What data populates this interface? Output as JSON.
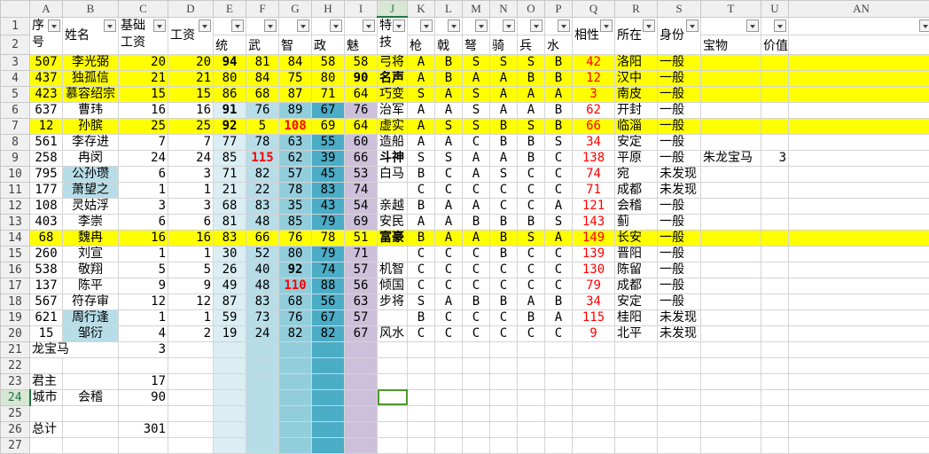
{
  "sheet": {
    "column_letters": [
      "A",
      "B",
      "C",
      "D",
      "E",
      "F",
      "G",
      "H",
      "I",
      "J",
      "K",
      "L",
      "M",
      "N",
      "O",
      "P",
      "Q",
      "R",
      "S",
      "T",
      "U",
      "AN"
    ],
    "active_cell": "J24",
    "header_labels": {
      "A": "序号",
      "B": "姓名",
      "C": "基础工资",
      "D": "工资",
      "E": "统",
      "F": "武",
      "G": "智",
      "H": "政",
      "I": "魅",
      "J": "特技",
      "K": "枪",
      "L": "戟",
      "M": "弩",
      "N": "骑",
      "O": "兵",
      "P": "水",
      "Q": "相性",
      "R": "所在",
      "S": "身份",
      "T": "宝物",
      "U": "价值"
    },
    "colors": {
      "highlight_row": "#ffff00",
      "统": "#daeef3",
      "武": "#b7dde8",
      "智": "#92cddc",
      "政": "#4bacc6",
      "魅": "#ccc0da",
      "name_highlight": "#b7dde8",
      "red_text": "#ff0000",
      "active_cell_border": "#4a9a2c"
    },
    "rows": [
      {
        "n": 3,
        "highlight": true,
        "cells": [
          "507",
          "李光弼",
          "20",
          "20",
          "94",
          "81",
          "84",
          "58",
          "58",
          "弓将",
          "A",
          "B",
          "S",
          "S",
          "S",
          "B",
          "42",
          "洛阳",
          "一般",
          "",
          ""
        ]
      },
      {
        "n": 4,
        "highlight": true,
        "cells": [
          "437",
          "独孤信",
          "21",
          "21",
          "80",
          "84",
          "75",
          "80",
          "90",
          "名声",
          "A",
          "B",
          "A",
          "A",
          "B",
          "B",
          "12",
          "汉中",
          "一般",
          "",
          ""
        ]
      },
      {
        "n": 5,
        "highlight": true,
        "cells": [
          "423",
          "慕容绍宗",
          "15",
          "15",
          "86",
          "68",
          "87",
          "71",
          "64",
          "巧变",
          "S",
          "A",
          "S",
          "A",
          "A",
          "A",
          "3",
          "南皮",
          "一般",
          "",
          ""
        ]
      },
      {
        "n": 6,
        "cells": [
          "637",
          "曹玮",
          "16",
          "16",
          "91",
          "76",
          "89",
          "67",
          "76",
          "治军",
          "A",
          "A",
          "S",
          "A",
          "A",
          "B",
          "62",
          "开封",
          "一般",
          "",
          ""
        ]
      },
      {
        "n": 7,
        "highlight": true,
        "cells": [
          "12",
          "孙膑",
          "25",
          "25",
          "92",
          "5",
          "108",
          "69",
          "64",
          "虚实",
          "A",
          "S",
          "S",
          "B",
          "S",
          "B",
          "66",
          "临淄",
          "一般",
          "",
          ""
        ]
      },
      {
        "n": 8,
        "cells": [
          "561",
          "李存进",
          "7",
          "7",
          "77",
          "78",
          "63",
          "55",
          "60",
          "造船",
          "A",
          "A",
          "C",
          "B",
          "B",
          "S",
          "34",
          "安定",
          "一般",
          "",
          ""
        ]
      },
      {
        "n": 9,
        "cells": [
          "258",
          "冉闵",
          "24",
          "24",
          "85",
          "115",
          "62",
          "39",
          "66",
          "斗神",
          "S",
          "S",
          "A",
          "A",
          "B",
          "C",
          "138",
          "平原",
          "一般",
          "朱龙宝马",
          "3"
        ]
      },
      {
        "n": 10,
        "name_highlight": true,
        "cells": [
          "795",
          "公孙瓒",
          "6",
          "3",
          "71",
          "82",
          "57",
          "45",
          "53",
          "白马",
          "B",
          "C",
          "A",
          "S",
          "C",
          "C",
          "74",
          "宛",
          "未发现",
          "",
          ""
        ]
      },
      {
        "n": 11,
        "name_highlight": true,
        "cells": [
          "177",
          "萧望之",
          "1",
          "1",
          "21",
          "22",
          "78",
          "83",
          "74",
          "",
          "C",
          "C",
          "C",
          "C",
          "C",
          "C",
          "71",
          "成都",
          "未发现",
          "",
          ""
        ]
      },
      {
        "n": 12,
        "cells": [
          "108",
          "灵姑浮",
          "3",
          "3",
          "68",
          "83",
          "35",
          "43",
          "54",
          "亲越",
          "B",
          "A",
          "A",
          "C",
          "C",
          "A",
          "121",
          "会稽",
          "一般",
          "",
          ""
        ]
      },
      {
        "n": 13,
        "cells": [
          "403",
          "李崇",
          "6",
          "6",
          "81",
          "48",
          "85",
          "79",
          "69",
          "安民",
          "A",
          "A",
          "B",
          "B",
          "B",
          "S",
          "143",
          "蓟",
          "一般",
          "",
          ""
        ]
      },
      {
        "n": 14,
        "highlight": true,
        "cells": [
          "68",
          "魏冉",
          "16",
          "16",
          "83",
          "66",
          "76",
          "78",
          "51",
          "富豪",
          "B",
          "A",
          "A",
          "B",
          "S",
          "A",
          "149",
          "长安",
          "一般",
          "",
          ""
        ]
      },
      {
        "n": 15,
        "cells": [
          "260",
          "刘宣",
          "1",
          "1",
          "30",
          "52",
          "80",
          "79",
          "71",
          "",
          "C",
          "C",
          "C",
          "B",
          "C",
          "C",
          "139",
          "晋阳",
          "一般",
          "",
          ""
        ]
      },
      {
        "n": 16,
        "cells": [
          "538",
          "敬翔",
          "5",
          "5",
          "26",
          "40",
          "92",
          "74",
          "57",
          "机智",
          "C",
          "C",
          "C",
          "C",
          "C",
          "C",
          "130",
          "陈留",
          "一般",
          "",
          ""
        ]
      },
      {
        "n": 17,
        "cells": [
          "137",
          "陈平",
          "9",
          "9",
          "49",
          "48",
          "110",
          "88",
          "56",
          "倾国",
          "C",
          "C",
          "C",
          "C",
          "C",
          "C",
          "79",
          "成都",
          "一般",
          "",
          ""
        ]
      },
      {
        "n": 18,
        "cells": [
          "567",
          "符存审",
          "12",
          "12",
          "87",
          "83",
          "68",
          "56",
          "63",
          "步将",
          "S",
          "A",
          "B",
          "B",
          "A",
          "B",
          "34",
          "安定",
          "一般",
          "",
          ""
        ]
      },
      {
        "n": 19,
        "name_highlight": true,
        "cells": [
          "621",
          "周行逢",
          "1",
          "1",
          "59",
          "73",
          "76",
          "67",
          "57",
          "",
          "B",
          "C",
          "C",
          "C",
          "B",
          "A",
          "115",
          "桂阳",
          "未发现",
          "",
          ""
        ]
      },
      {
        "n": 20,
        "name_highlight": true,
        "cells": [
          "15",
          "邹衍",
          "4",
          "2",
          "19",
          "24",
          "82",
          "82",
          "67",
          "风水",
          "C",
          "C",
          "C",
          "C",
          "C",
          "C",
          "9",
          "北平",
          "未发现",
          "",
          ""
        ]
      }
    ],
    "emphasis": {
      "bold": [
        "3:4",
        "4:8",
        "6:4",
        "7:4",
        "16:6",
        "4:9",
        "9:9",
        "14:9"
      ],
      "bold_red": [
        "7:6",
        "9:5",
        "17:6"
      ]
    },
    "summary": {
      "r21": {
        "a": "龙宝马",
        "c": "3"
      },
      "r23": {
        "a": "君主",
        "c": "17"
      },
      "r24": {
        "a": "城市",
        "b": "会稽",
        "c": "90"
      },
      "r26": {
        "a": "总计",
        "c": "301"
      }
    }
  }
}
